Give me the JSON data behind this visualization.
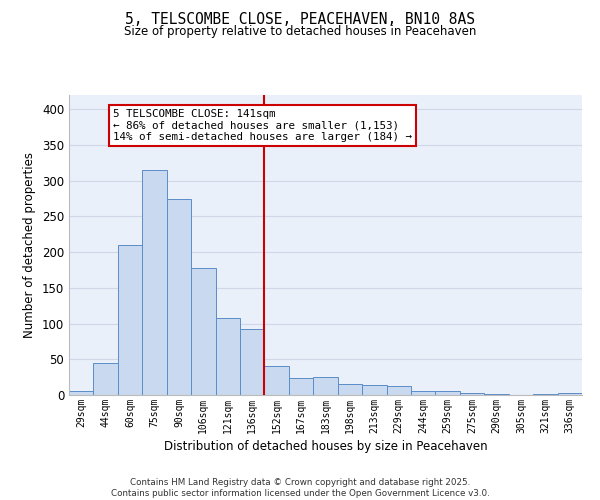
{
  "title1": "5, TELSCOMBE CLOSE, PEACEHAVEN, BN10 8AS",
  "title2": "Size of property relative to detached houses in Peacehaven",
  "xlabel": "Distribution of detached houses by size in Peacehaven",
  "ylabel": "Number of detached properties",
  "bar_labels": [
    "29sqm",
    "44sqm",
    "60sqm",
    "75sqm",
    "90sqm",
    "106sqm",
    "121sqm",
    "136sqm",
    "152sqm",
    "167sqm",
    "183sqm",
    "198sqm",
    "213sqm",
    "229sqm",
    "244sqm",
    "259sqm",
    "275sqm",
    "290sqm",
    "305sqm",
    "321sqm",
    "336sqm"
  ],
  "bar_values": [
    5,
    45,
    210,
    315,
    275,
    178,
    108,
    93,
    40,
    24,
    25,
    15,
    14,
    12,
    5,
    5,
    3,
    2,
    0,
    1,
    3
  ],
  "bar_color": "#c9d9ef",
  "bar_edge_color": "#5b8dc8",
  "grid_color": "#d0d8e8",
  "background_color": "#eaf0fa",
  "vline_color": "#cc0000",
  "annotation_text": "5 TELSCOMBE CLOSE: 141sqm\n← 86% of detached houses are smaller (1,153)\n14% of semi-detached houses are larger (184) →",
  "annotation_box_color": "#ffffff",
  "annotation_box_edge_color": "#cc0000",
  "footer_text": "Contains HM Land Registry data © Crown copyright and database right 2025.\nContains public sector information licensed under the Open Government Licence v3.0.",
  "ylim": [
    0,
    420
  ],
  "yticks": [
    0,
    50,
    100,
    150,
    200,
    250,
    300,
    350,
    400
  ],
  "figsize": [
    6.0,
    5.0
  ],
  "dpi": 100
}
